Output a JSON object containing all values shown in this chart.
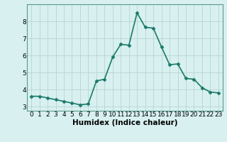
{
  "x": [
    0,
    1,
    2,
    3,
    4,
    5,
    6,
    7,
    8,
    9,
    10,
    11,
    12,
    13,
    14,
    15,
    16,
    17,
    18,
    19,
    20,
    21,
    22,
    23
  ],
  "y": [
    3.6,
    3.6,
    3.5,
    3.4,
    3.3,
    3.2,
    3.1,
    3.15,
    4.5,
    4.6,
    5.9,
    6.65,
    6.6,
    8.5,
    7.65,
    7.6,
    6.5,
    5.45,
    5.5,
    4.65,
    4.6,
    4.1,
    3.85,
    3.8
  ],
  "line_color": "#1a7a6a",
  "marker": "D",
  "marker_size": 2.5,
  "bg_color": "#d8f0f0",
  "grid_color": "#b8d4d4",
  "xlabel": "Humidex (Indice chaleur)",
  "xlabel_fontsize": 7.5,
  "yticks": [
    3,
    4,
    5,
    6,
    7,
    8
  ],
  "xticks": [
    0,
    1,
    2,
    3,
    4,
    5,
    6,
    7,
    8,
    9,
    10,
    11,
    12,
    13,
    14,
    15,
    16,
    17,
    18,
    19,
    20,
    21,
    22,
    23
  ],
  "ylim": [
    2.75,
    9.0
  ],
  "xlim": [
    -0.5,
    23.5
  ],
  "tick_fontsize": 6.5,
  "line_width": 1.2,
  "spine_color": "#5a9a8a"
}
